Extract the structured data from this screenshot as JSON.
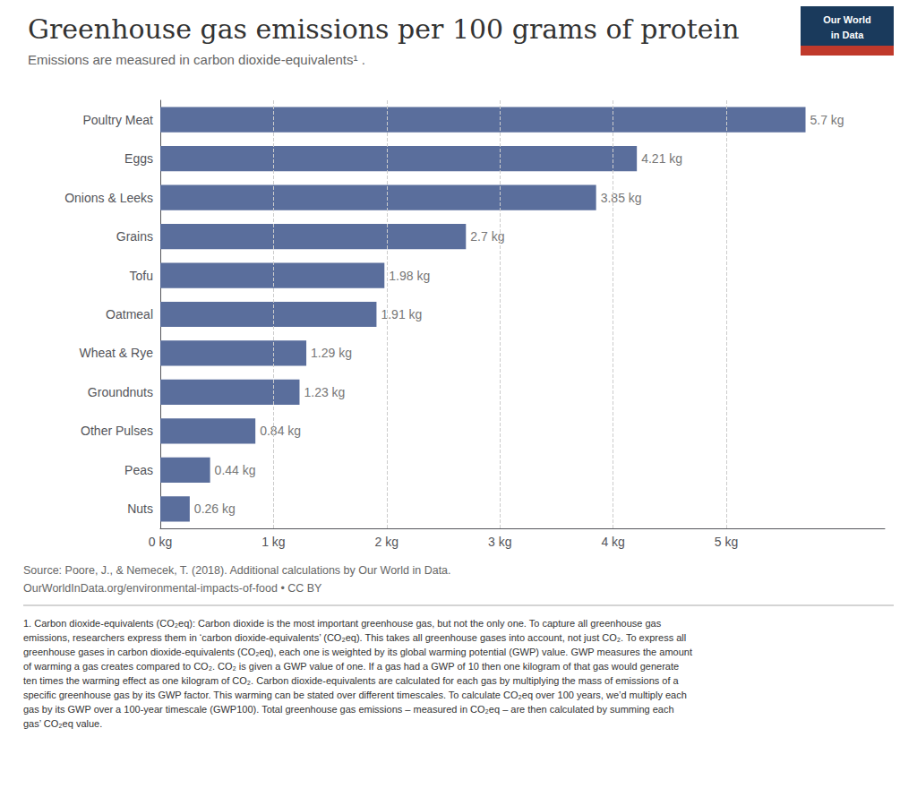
{
  "chart_data": {
    "type": "bar",
    "orientation": "horizontal",
    "title": "Greenhouse gas emissions per 100 grams of protein",
    "subtitle": "Emissions are measured in carbon dioxide-equivalents¹ .",
    "categories": [
      "Nuts",
      "Peas",
      "Other Pulses",
      "Groundnuts",
      "Wheat & Rye",
      "Oatmeal",
      "Tofu",
      "Grains",
      "Onions & Leeks",
      "Eggs",
      "Poultry Meat"
    ],
    "values": [
      0.26,
      0.44,
      0.84,
      1.23,
      1.29,
      1.91,
      1.98,
      2.7,
      3.85,
      4.21,
      5.7
    ],
    "value_labels": [
      "0.26 kg",
      "0.44 kg",
      "0.84 kg",
      "1.23 kg",
      "1.29 kg",
      "1.91 kg",
      "1.98 kg",
      "2.7 kg",
      "3.85 kg",
      "4.21 kg",
      "5.7 kg"
    ],
    "data_labels": true,
    "color": "#5a6e9c",
    "xlim": [
      0,
      6.4
    ],
    "xticks": [
      {
        "value": 0,
        "label": "0 kg"
      },
      {
        "value": 1,
        "label": "1 kg"
      },
      {
        "value": 2,
        "label": "2 kg"
      },
      {
        "value": 3,
        "label": "3 kg"
      },
      {
        "value": 4,
        "label": "4 kg"
      },
      {
        "value": 5,
        "label": "5 kg"
      }
    ],
    "grid": true,
    "source": [
      "Source: Poore, J., & Nemecek, T. (2018). Additional calculations by Our World in Data.",
      "OurWorldInData.org/environmental-impacts-of-food • CC BY"
    ],
    "footnote": "1. Carbon dioxide-equivalents (CO₂eq): Carbon dioxide is the most important greenhouse gas, but not the only one. To capture all greenhouse gas\nemissions, researchers express them in ‘carbon dioxide-equivalents’ (CO₂eq). This takes all greenhouse gases into account, not just CO₂. To express all\ngreenhouse gases in carbon dioxide-equivalents (CO₂eq), each one is weighted by its global warming potential (GWP) value. GWP measures the amount\nof warming a gas creates compared to CO₂. CO₂ is given a GWP value of one. If a gas had a GWP of 10 then one kilogram of that gas would generate\nten times the warming effect as one kilogram of CO₂. Carbon dioxide-equivalents are calculated for each gas by multiplying the mass of emissions of a\nspecific greenhouse gas by its GWP factor. This warming can be stated over different timescales. To calculate CO₂eq over 100 years, we’d multiply each\ngas by its GWP over a 100-year timescale (GWP100). Total greenhouse gas emissions – measured in CO₂eq – are then calculated by summing each\ngas’ CO₂eq value.",
    "logo": {
      "text": [
        "Our World",
        "in Data"
      ],
      "colors": [
        "#1a3a5c",
        "#c0392b"
      ]
    }
  }
}
